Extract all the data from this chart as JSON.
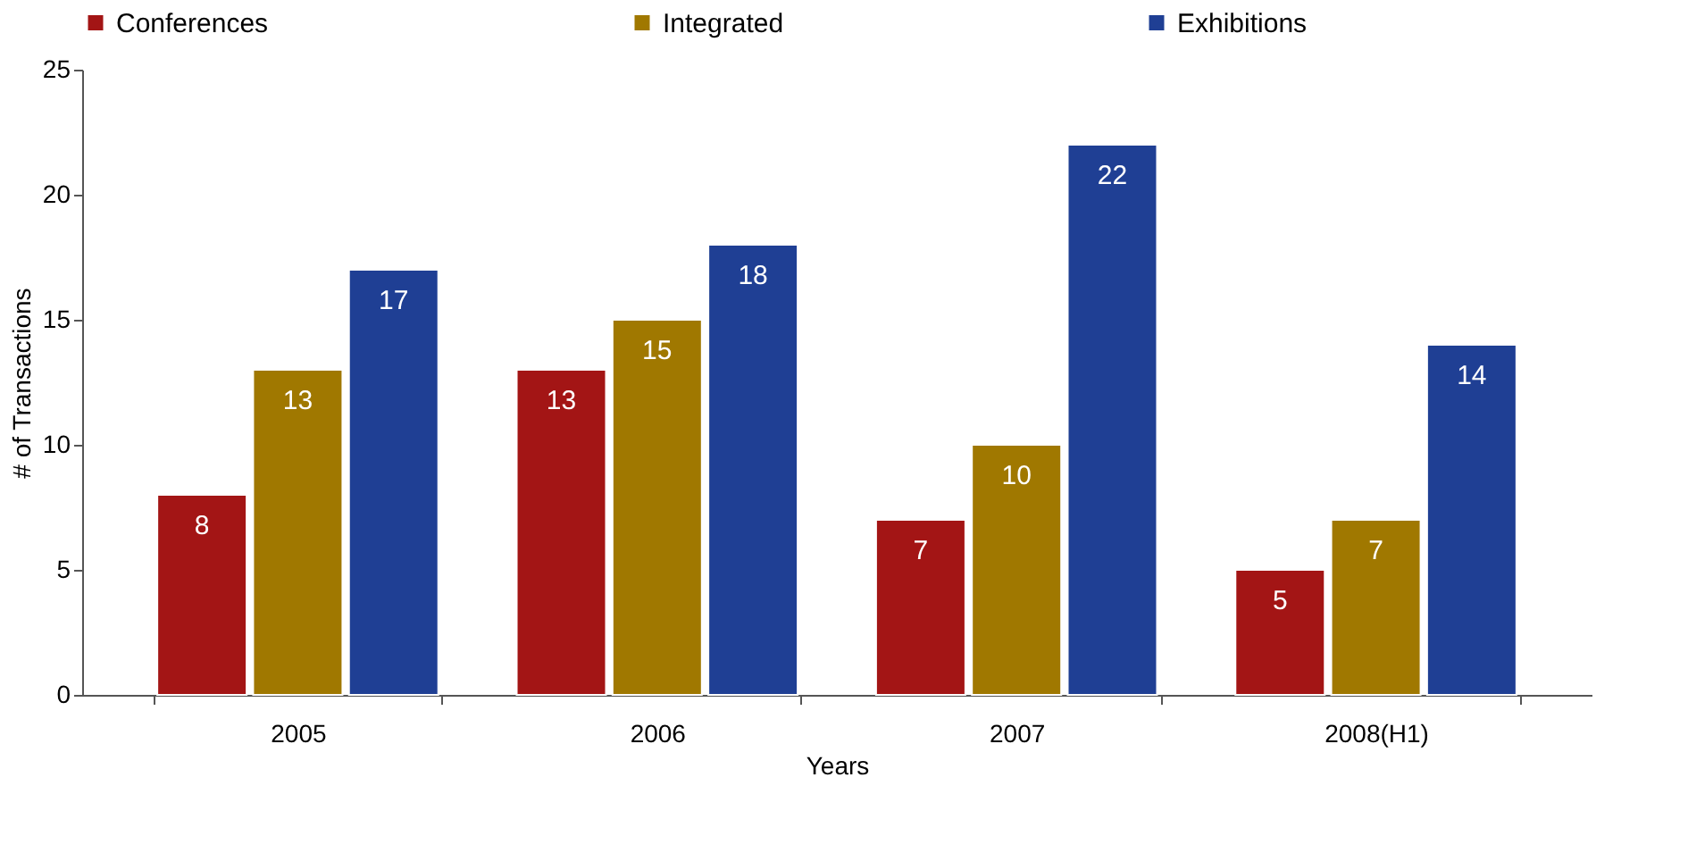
{
  "chart_data": {
    "type": "bar",
    "xlabel": "Years",
    "ylabel": "# of Transactions",
    "categories": [
      "2005",
      "2006",
      "2007",
      "2008(H1)"
    ],
    "series": [
      {
        "name": "Conferences",
        "color": "#a31515",
        "values": [
          8,
          13,
          7,
          5
        ]
      },
      {
        "name": "Integrated",
        "color": "#a07800",
        "values": [
          13,
          15,
          10,
          7
        ]
      },
      {
        "name": "Exhibitions",
        "color": "#1f3f94",
        "values": [
          17,
          18,
          22,
          14
        ]
      }
    ],
    "ylim": [
      0,
      25
    ],
    "yticks": [
      0,
      5,
      10,
      15,
      20,
      25
    ],
    "grid": false,
    "legend": "top",
    "data_labels": true
  }
}
